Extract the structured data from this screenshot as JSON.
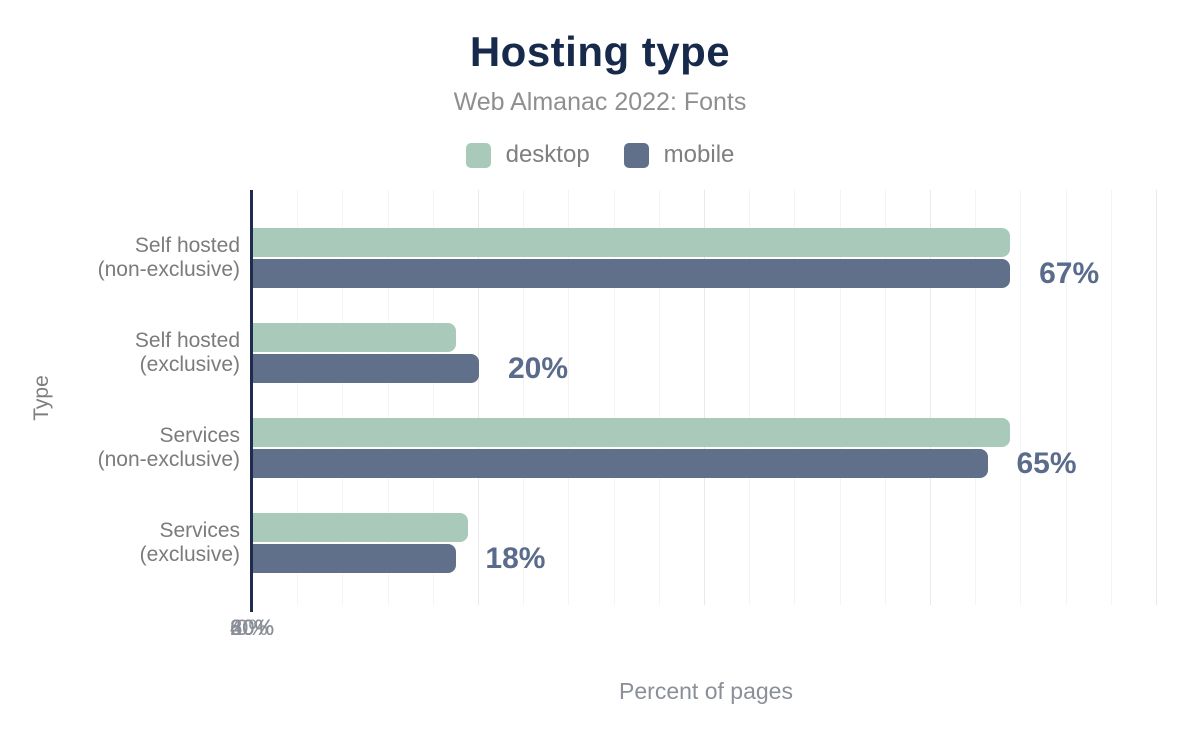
{
  "header": {
    "title": "Hosting type",
    "subtitle": "Web Almanac 2022: Fonts"
  },
  "chart_data": {
    "type": "bar",
    "orientation": "horizontal",
    "title": "Hosting type",
    "subtitle": "Web Almanac 2022: Fonts",
    "xlabel": "Percent of pages",
    "ylabel": "Type",
    "xlim": [
      0,
      80
    ],
    "xticks": [
      "0%",
      "20%",
      "40%",
      "60%",
      "80%"
    ],
    "xtick_values": [
      0,
      20,
      40,
      60,
      80
    ],
    "categories": [
      "Self hosted (non-exclusive)",
      "Self hosted (exclusive)",
      "Services (non-exclusive)",
      "Services (exclusive)"
    ],
    "categories_lines": [
      [
        "Self hosted",
        "(non-exclusive)"
      ],
      [
        "Self hosted",
        "(exclusive)"
      ],
      [
        "Services",
        "(non-exclusive)"
      ],
      [
        "Services",
        "(exclusive)"
      ]
    ],
    "series": [
      {
        "name": "desktop",
        "color": "#a9cabb",
        "values": [
          67,
          18,
          67,
          19
        ]
      },
      {
        "name": "mobile",
        "color": "#60708a",
        "values": [
          67,
          20,
          65,
          18
        ]
      }
    ],
    "bar_labels": {
      "labeled_series": "mobile",
      "values": [
        "67%",
        "20%",
        "65%",
        "18%"
      ]
    },
    "grid": {
      "minor_step_pct": 4,
      "major_step_pct": 20,
      "direction": "vertical"
    },
    "legend_position": "top"
  },
  "colors": {
    "title": "#172a4b",
    "subtitle": "#8f8f8f",
    "axis_line": "#1e2d4e",
    "tick_text": "#8a8f98",
    "category_text": "#7b7b7b",
    "bar_label_text": "#5a6b8b",
    "grid_minor": "#f4f4f4",
    "grid_major": "#e9e9e9",
    "desktop": "#a9cabb",
    "mobile": "#60708a"
  }
}
